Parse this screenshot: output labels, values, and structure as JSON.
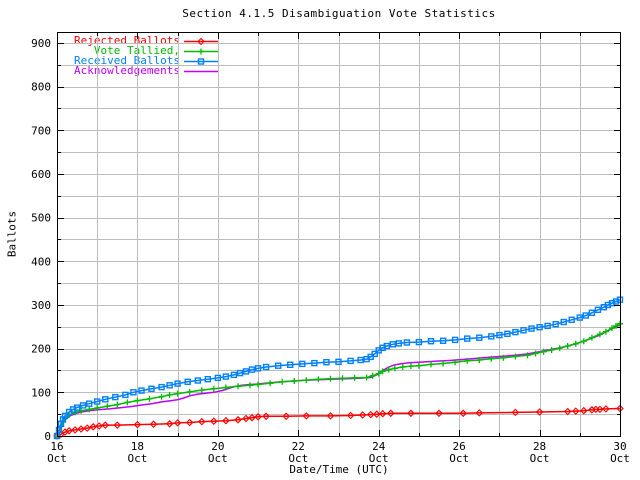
{
  "window": {
    "background": "#ffffff"
  },
  "chart_data": {
    "type": "line",
    "title": "Section 4.1.5 Disambiguation Vote Statistics",
    "xlabel": "Date/Time (UTC)",
    "ylabel": "Ballots",
    "xlim": [
      16,
      30
    ],
    "ylim": [
      0,
      925
    ],
    "x_axis_unit": "day of October (UTC)",
    "x_major_ticks": [
      {
        "v": 16,
        "line1": "16",
        "line2": "Oct"
      },
      {
        "v": 18,
        "line1": "18",
        "line2": "Oct"
      },
      {
        "v": 20,
        "line1": "20",
        "line2": "Oct"
      },
      {
        "v": 22,
        "line1": "22",
        "line2": "Oct"
      },
      {
        "v": 24,
        "line1": "24",
        "line2": "Oct"
      },
      {
        "v": 26,
        "line1": "26",
        "line2": "Oct"
      },
      {
        "v": 28,
        "line1": "28",
        "line2": "Oct"
      },
      {
        "v": 30,
        "line1": "30",
        "line2": "Oct"
      }
    ],
    "x_minor_tick_step": 1,
    "y_major_ticks": [
      {
        "v": 0,
        "label": "0"
      },
      {
        "v": 100,
        "label": "100"
      },
      {
        "v": 200,
        "label": "200"
      },
      {
        "v": 300,
        "label": "300"
      },
      {
        "v": 400,
        "label": "400"
      },
      {
        "v": 500,
        "label": "500"
      },
      {
        "v": 600,
        "label": "600"
      },
      {
        "v": 700,
        "label": "700"
      },
      {
        "v": 800,
        "label": "800"
      },
      {
        "v": 900,
        "label": "900"
      }
    ],
    "y_minor_tick_step": 50,
    "grid": {
      "on": true,
      "color": "#bdbdbd",
      "x_step_days": 1,
      "y_step": 50
    },
    "axis_color": "#000000",
    "legend": {
      "position": "top-left-inside"
    },
    "series": [
      {
        "name": "Rejected Ballots",
        "color": "#ff0000",
        "marker": "diamond",
        "points": [
          [
            16.0,
            0
          ],
          [
            16.1,
            4
          ],
          [
            16.2,
            9
          ],
          [
            16.3,
            12
          ],
          [
            16.45,
            14
          ],
          [
            16.6,
            16
          ],
          [
            16.75,
            18
          ],
          [
            16.9,
            21
          ],
          [
            17.05,
            23
          ],
          [
            17.2,
            25
          ],
          [
            17.5,
            25
          ],
          [
            18.0,
            26
          ],
          [
            18.4,
            27
          ],
          [
            18.8,
            28
          ],
          [
            19.0,
            30
          ],
          [
            19.3,
            31
          ],
          [
            19.6,
            33
          ],
          [
            19.9,
            34
          ],
          [
            20.2,
            35
          ],
          [
            20.5,
            37
          ],
          [
            20.7,
            40
          ],
          [
            20.85,
            42
          ],
          [
            21.0,
            44
          ],
          [
            21.2,
            45
          ],
          [
            21.7,
            45
          ],
          [
            22.2,
            46
          ],
          [
            22.8,
            46
          ],
          [
            23.3,
            47
          ],
          [
            23.6,
            48
          ],
          [
            23.8,
            49
          ],
          [
            23.95,
            50
          ],
          [
            24.1,
            51
          ],
          [
            24.3,
            52
          ],
          [
            24.8,
            52
          ],
          [
            25.5,
            52
          ],
          [
            26.1,
            52
          ],
          [
            26.5,
            53
          ],
          [
            27.4,
            54
          ],
          [
            28.0,
            55
          ],
          [
            28.7,
            56
          ],
          [
            28.9,
            57
          ],
          [
            29.1,
            58
          ],
          [
            29.3,
            60
          ],
          [
            29.4,
            61
          ],
          [
            29.5,
            61
          ],
          [
            29.65,
            62
          ],
          [
            30.0,
            63
          ]
        ]
      },
      {
        "name": "Vote Tallied,",
        "color": "#00bb00",
        "marker": "plus",
        "points": [
          [
            16.0,
            0
          ],
          [
            16.05,
            10
          ],
          [
            16.1,
            22
          ],
          [
            16.15,
            32
          ],
          [
            16.2,
            40
          ],
          [
            16.3,
            48
          ],
          [
            16.45,
            54
          ],
          [
            16.6,
            58
          ],
          [
            16.8,
            61
          ],
          [
            17.0,
            64
          ],
          [
            17.25,
            68
          ],
          [
            17.5,
            72
          ],
          [
            17.75,
            77
          ],
          [
            18.0,
            81
          ],
          [
            18.3,
            85
          ],
          [
            18.6,
            90
          ],
          [
            18.8,
            94
          ],
          [
            19.0,
            97
          ],
          [
            19.3,
            101
          ],
          [
            19.6,
            105
          ],
          [
            19.9,
            108
          ],
          [
            20.2,
            111
          ],
          [
            20.5,
            114
          ],
          [
            20.8,
            116
          ],
          [
            21.0,
            118
          ],
          [
            21.3,
            121
          ],
          [
            21.6,
            124
          ],
          [
            21.9,
            126
          ],
          [
            22.2,
            128
          ],
          [
            22.5,
            130
          ],
          [
            22.8,
            131
          ],
          [
            23.1,
            132
          ],
          [
            23.4,
            133
          ],
          [
            23.7,
            134
          ],
          [
            23.85,
            138
          ],
          [
            24.0,
            143
          ],
          [
            24.1,
            148
          ],
          [
            24.25,
            152
          ],
          [
            24.4,
            155
          ],
          [
            24.6,
            158
          ],
          [
            24.8,
            160
          ],
          [
            25.0,
            161
          ],
          [
            25.3,
            164
          ],
          [
            25.6,
            166
          ],
          [
            25.9,
            169
          ],
          [
            26.2,
            172
          ],
          [
            26.5,
            174
          ],
          [
            26.8,
            177
          ],
          [
            27.1,
            179
          ],
          [
            27.4,
            182
          ],
          [
            27.7,
            185
          ],
          [
            27.9,
            189
          ],
          [
            28.1,
            193
          ],
          [
            28.3,
            197
          ],
          [
            28.5,
            201
          ],
          [
            28.7,
            206
          ],
          [
            28.9,
            211
          ],
          [
            29.1,
            217
          ],
          [
            29.3,
            225
          ],
          [
            29.5,
            233
          ],
          [
            29.65,
            239
          ],
          [
            29.8,
            247
          ],
          [
            29.9,
            252
          ],
          [
            30.0,
            257
          ]
        ]
      },
      {
        "name": "Received Ballots",
        "color": "#0080ff",
        "marker": "square",
        "points": [
          [
            16.0,
            0
          ],
          [
            16.05,
            14
          ],
          [
            16.1,
            28
          ],
          [
            16.15,
            38
          ],
          [
            16.2,
            46
          ],
          [
            16.3,
            55
          ],
          [
            16.4,
            61
          ],
          [
            16.5,
            65
          ],
          [
            16.65,
            70
          ],
          [
            16.8,
            74
          ],
          [
            17.0,
            79
          ],
          [
            17.2,
            84
          ],
          [
            17.45,
            89
          ],
          [
            17.7,
            94
          ],
          [
            17.9,
            100
          ],
          [
            18.1,
            104
          ],
          [
            18.35,
            108
          ],
          [
            18.6,
            112
          ],
          [
            18.8,
            116
          ],
          [
            19.0,
            120
          ],
          [
            19.25,
            124
          ],
          [
            19.5,
            127
          ],
          [
            19.75,
            130
          ],
          [
            20.0,
            133
          ],
          [
            20.2,
            136
          ],
          [
            20.4,
            140
          ],
          [
            20.55,
            144
          ],
          [
            20.7,
            148
          ],
          [
            20.85,
            152
          ],
          [
            21.0,
            155
          ],
          [
            21.2,
            158
          ],
          [
            21.5,
            161
          ],
          [
            21.8,
            163
          ],
          [
            22.1,
            165
          ],
          [
            22.4,
            167
          ],
          [
            22.7,
            169
          ],
          [
            23.0,
            170
          ],
          [
            23.3,
            172
          ],
          [
            23.55,
            174
          ],
          [
            23.7,
            176
          ],
          [
            23.8,
            181
          ],
          [
            23.9,
            188
          ],
          [
            24.0,
            196
          ],
          [
            24.1,
            202
          ],
          [
            24.2,
            206
          ],
          [
            24.35,
            210
          ],
          [
            24.5,
            212
          ],
          [
            24.7,
            214
          ],
          [
            25.0,
            215
          ],
          [
            25.3,
            217
          ],
          [
            25.6,
            218
          ],
          [
            25.9,
            220
          ],
          [
            26.2,
            223
          ],
          [
            26.5,
            225
          ],
          [
            26.8,
            228
          ],
          [
            27.0,
            231
          ],
          [
            27.2,
            234
          ],
          [
            27.4,
            238
          ],
          [
            27.6,
            242
          ],
          [
            27.8,
            246
          ],
          [
            28.0,
            249
          ],
          [
            28.2,
            252
          ],
          [
            28.4,
            256
          ],
          [
            28.6,
            261
          ],
          [
            28.8,
            266
          ],
          [
            29.0,
            271
          ],
          [
            29.15,
            276
          ],
          [
            29.3,
            282
          ],
          [
            29.45,
            289
          ],
          [
            29.6,
            295
          ],
          [
            29.7,
            300
          ],
          [
            29.8,
            304
          ],
          [
            29.9,
            308
          ],
          [
            30.0,
            312
          ]
        ]
      },
      {
        "name": "Acknowledgements",
        "color": "#bf00ff",
        "marker": "none",
        "points": [
          [
            16.0,
            0
          ],
          [
            16.05,
            9
          ],
          [
            16.1,
            20
          ],
          [
            16.15,
            30
          ],
          [
            16.2,
            37
          ],
          [
            16.3,
            45
          ],
          [
            16.45,
            51
          ],
          [
            16.6,
            55
          ],
          [
            16.8,
            58
          ],
          [
            17.0,
            60
          ],
          [
            17.3,
            62
          ],
          [
            17.6,
            65
          ],
          [
            17.9,
            68
          ],
          [
            18.1,
            71
          ],
          [
            18.35,
            74
          ],
          [
            18.6,
            78
          ],
          [
            18.85,
            81
          ],
          [
            19.0,
            83
          ],
          [
            19.15,
            87
          ],
          [
            19.3,
            92
          ],
          [
            19.5,
            96
          ],
          [
            19.7,
            98
          ],
          [
            19.9,
            100
          ],
          [
            20.1,
            104
          ],
          [
            20.3,
            110
          ],
          [
            20.45,
            114
          ],
          [
            20.6,
            116
          ],
          [
            20.8,
            118
          ],
          [
            21.0,
            119
          ],
          [
            21.3,
            122
          ],
          [
            21.6,
            124
          ],
          [
            21.9,
            126
          ],
          [
            22.2,
            128
          ],
          [
            22.5,
            129
          ],
          [
            22.8,
            130
          ],
          [
            23.2,
            131
          ],
          [
            23.5,
            132
          ],
          [
            23.8,
            134
          ],
          [
            23.95,
            140
          ],
          [
            24.1,
            150
          ],
          [
            24.25,
            158
          ],
          [
            24.4,
            163
          ],
          [
            24.6,
            166
          ],
          [
            24.8,
            168
          ],
          [
            25.0,
            169
          ],
          [
            25.4,
            171
          ],
          [
            25.8,
            173
          ],
          [
            26.2,
            176
          ],
          [
            26.6,
            179
          ],
          [
            27.0,
            182
          ],
          [
            27.4,
            185
          ],
          [
            27.7,
            188
          ],
          [
            28.0,
            193
          ],
          [
            28.2,
            197
          ],
          [
            28.45,
            201
          ],
          [
            28.7,
            206
          ],
          [
            28.9,
            211
          ],
          [
            29.1,
            217
          ],
          [
            29.3,
            224
          ],
          [
            29.5,
            231
          ],
          [
            29.7,
            241
          ],
          [
            29.85,
            248
          ],
          [
            30.0,
            254
          ]
        ]
      }
    ]
  }
}
